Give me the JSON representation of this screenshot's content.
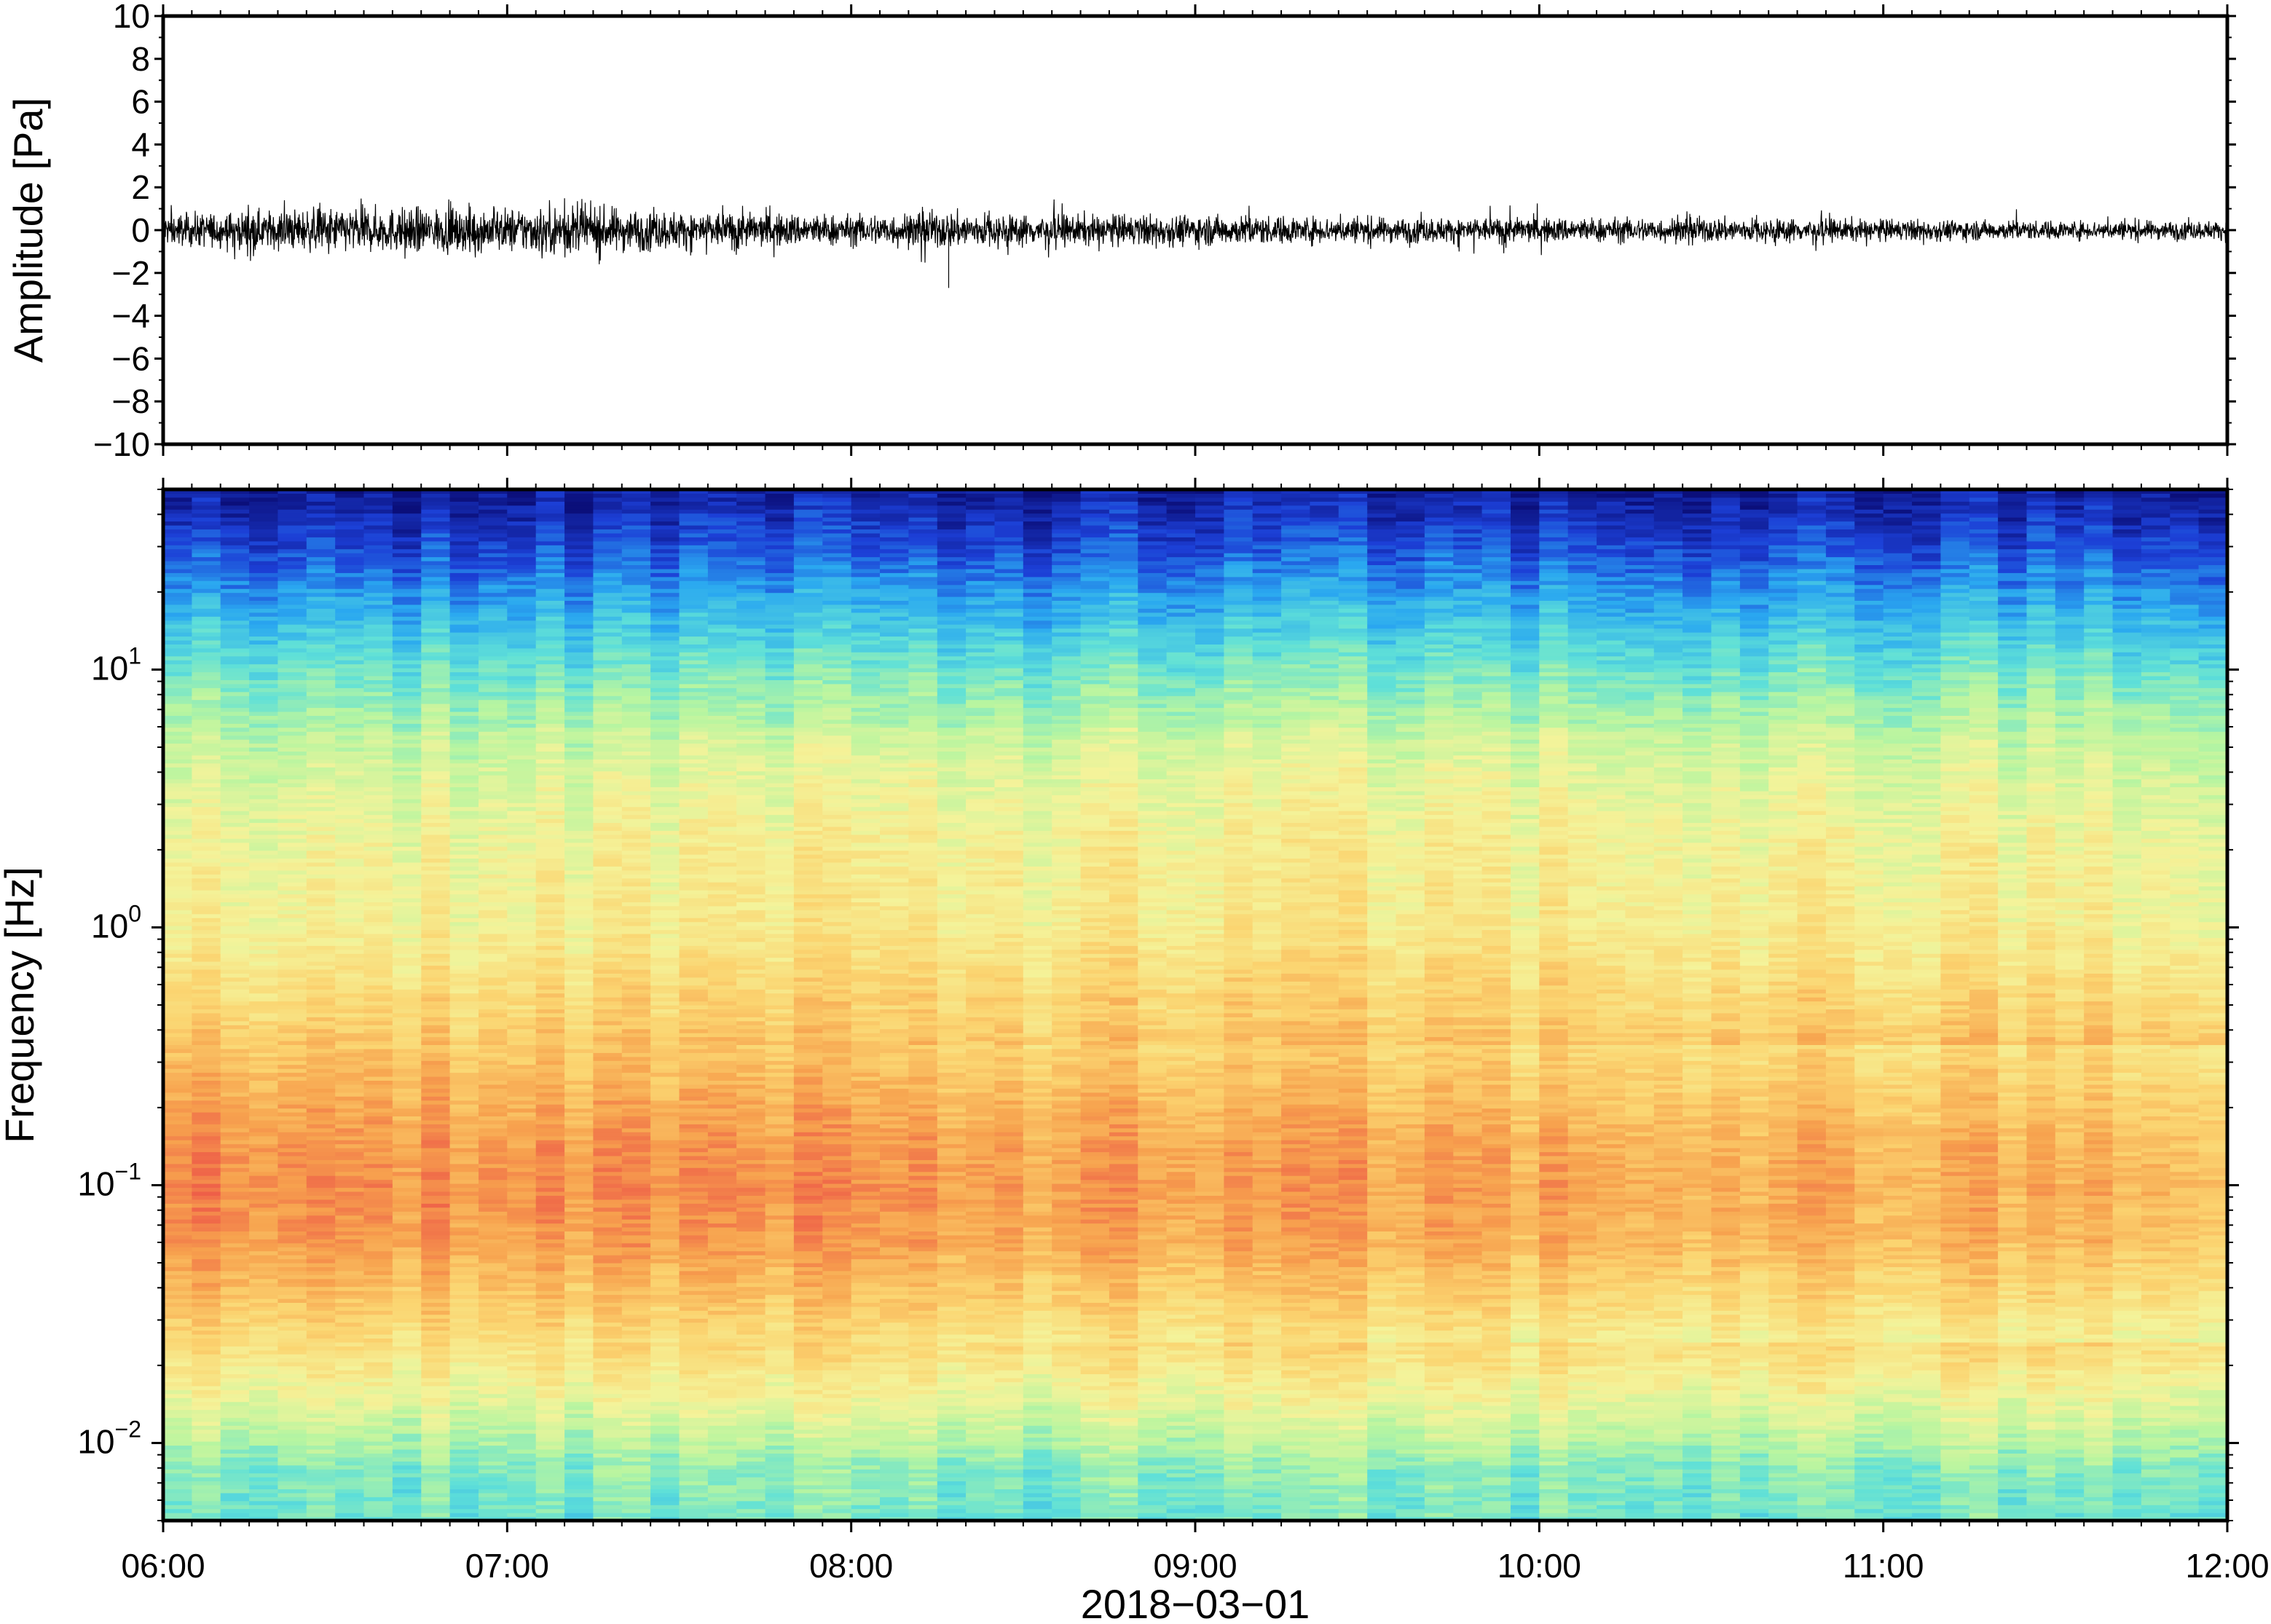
{
  "chart_data": [
    {
      "type": "line",
      "panel": "waveform",
      "title": "",
      "xlabel": "",
      "ylabel": "Amplitude [Pa]",
      "xlim": [
        "2018-03-01 06:00",
        "2018-03-01 12:00"
      ],
      "ylim": [
        -10,
        10
      ],
      "y_ticks": [
        10,
        8,
        6,
        4,
        2,
        0,
        -2,
        -4,
        -6,
        -8,
        -10
      ],
      "y_tick_labels": [
        "10",
        "8",
        "6",
        "4",
        "2",
        "0",
        "−2",
        "−4",
        "−6",
        "−8",
        "−10"
      ],
      "line_color": "#000000",
      "noise_envelope": {
        "x": [
          "06:00",
          "06:30",
          "07:00",
          "07:10",
          "07:30",
          "08:00",
          "08:17",
          "08:30",
          "09:00",
          "09:30",
          "10:00",
          "10:30",
          "11:00",
          "11:30",
          "12:00"
        ],
        "typical_abs_amplitude": [
          0.5,
          0.7,
          0.7,
          0.8,
          0.6,
          0.5,
          0.6,
          0.5,
          0.5,
          0.4,
          0.4,
          0.4,
          0.35,
          0.3,
          0.3
        ],
        "peak_max": [
          1.3,
          1.8,
          1.2,
          1.9,
          1.4,
          1.2,
          1.0,
          1.7,
          1.2,
          1.1,
          1.4,
          1.1,
          1.0,
          1.0,
          0.8
        ],
        "peak_min": [
          -1.2,
          -1.7,
          -1.3,
          -1.8,
          -1.3,
          -1.3,
          -2.7,
          -1.4,
          -1.2,
          -1.3,
          -1.2,
          -1.1,
          -1.0,
          -1.0,
          -0.8
        ]
      }
    },
    {
      "type": "heatmap",
      "panel": "spectrogram",
      "title": "",
      "xlabel": "2018−03−01",
      "ylabel": "Frequency [Hz]",
      "xlim": [
        "06:00",
        "12:00"
      ],
      "x_ticks": [
        "06:00",
        "07:00",
        "08:00",
        "09:00",
        "10:00",
        "11:00",
        "12:00"
      ],
      "y_scale": "log",
      "ylim": [
        0.005,
        50
      ],
      "y_ticks": [
        0.01,
        0.1,
        1,
        10
      ],
      "y_tick_labels": [
        {
          "base": "10",
          "exp": "−2"
        },
        {
          "base": "10",
          "exp": "−1"
        },
        {
          "base": "10",
          "exp": "0"
        },
        {
          "base": "10",
          "exp": "1"
        }
      ],
      "colormap": "spectral (dark blue = low power, red = high power)",
      "colormap_stops": [
        "#0b0f7a",
        "#1c3fd6",
        "#2aa8f0",
        "#5fe0d8",
        "#b8f5a0",
        "#f4f39a",
        "#fbd470",
        "#f7a24e",
        "#ee5d48"
      ],
      "power_profile_by_frequency": {
        "freq_hz": [
          0.005,
          0.008,
          0.012,
          0.02,
          0.035,
          0.06,
          0.1,
          0.16,
          0.3,
          0.6,
          1,
          2,
          4,
          7,
          12,
          20,
          30,
          50
        ],
        "relative_level_0_to_1": [
          0.4,
          0.44,
          0.55,
          0.68,
          0.8,
          0.9,
          0.93,
          0.9,
          0.82,
          0.7,
          0.64,
          0.62,
          0.56,
          0.48,
          0.36,
          0.24,
          0.14,
          0.04
        ]
      },
      "temporal_trend": "low-frequency band (0.03–0.3 Hz) strongest 06:00–08:30, weakening after 10:00"
    }
  ]
}
